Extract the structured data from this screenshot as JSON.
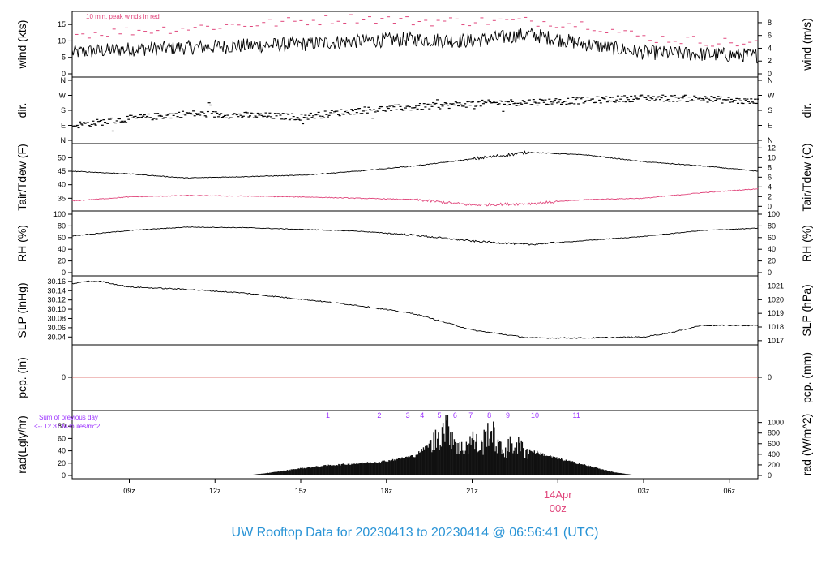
{
  "footer": {
    "title": "UW Rooftop Data for 20230413  to  20230414 @ 06:56:41  (UTC)"
  },
  "annotations": {
    "peak_note": "10 min. peak winds in red",
    "sum_label": "Sum of previous day",
    "sum_value": "<-- 12.37 MJoules/m^2",
    "date_label": "14Apr",
    "date_sub": "00z"
  },
  "colors": {
    "line": "#000000",
    "peak": "#e0457b",
    "dew": "#e0457b",
    "precip": "#d9534f",
    "title": "#2a94d6",
    "radlabel": "#9b30ff",
    "date": "#e0457b"
  },
  "chart_data": [
    {
      "type": "line",
      "panel": "wind",
      "ylabel": "wind (kts)",
      "ylabel_right": "wind (m/s)",
      "ylim": [
        0,
        18
      ],
      "yticks": [
        "0",
        "5",
        "10",
        "15"
      ],
      "yticks_right": [
        "0",
        "2",
        "4",
        "6",
        "8"
      ],
      "x_hours": [
        0,
        2,
        4,
        6,
        8,
        10,
        12,
        14,
        16,
        18,
        20,
        22,
        24
      ],
      "series": [
        {
          "values": [
            6.5,
            7.5,
            8,
            8.5,
            9,
            10,
            10.5,
            10,
            12,
            9,
            6.5,
            6,
            5.5
          ]
        },
        {
          "name": "peak",
          "values": [
            12,
            13,
            14,
            15,
            16,
            17,
            16,
            16,
            16,
            15,
            11,
            10,
            9
          ]
        }
      ]
    },
    {
      "type": "scatter",
      "panel": "dir",
      "ylabel": "dir.",
      "ylabel_right": "dir.",
      "yticks": [
        "N",
        "E",
        "S",
        "W",
        "N"
      ],
      "x_hours": [
        0,
        2,
        4,
        6,
        8,
        10,
        12,
        14,
        16,
        18,
        20,
        22,
        24
      ],
      "values": [
        90,
        130,
        160,
        150,
        140,
        180,
        200,
        220,
        230,
        240,
        255,
        250,
        230
      ]
    },
    {
      "type": "line",
      "panel": "temp",
      "ylabel": "Tair/Tdew (F)",
      "ylabel_right": "Tair/Tdew (C)",
      "ylim": [
        31.5,
        54
      ],
      "yticks": [
        "35",
        "40",
        "45",
        "50"
      ],
      "yticks_right": [
        "0",
        "2",
        "4",
        "6",
        "8",
        "10",
        "12"
      ],
      "x_hours": [
        0,
        2,
        4,
        6,
        8,
        10,
        12,
        14,
        16,
        18,
        20,
        22,
        24
      ],
      "series": [
        {
          "name": "Tair",
          "values": [
            45,
            44,
            42.5,
            43,
            43.5,
            45,
            47,
            49.5,
            52,
            51,
            48.5,
            47,
            45
          ]
        },
        {
          "name": "Tdew",
          "values": [
            34,
            35.5,
            36,
            35.8,
            35.5,
            35,
            34.5,
            32.5,
            33,
            34.5,
            35,
            37,
            38.5
          ]
        }
      ]
    },
    {
      "type": "line",
      "panel": "rh",
      "ylabel": "RH (%)",
      "ylabel_right": "RH (%)",
      "ylim": [
        0,
        100
      ],
      "yticks": [
        "0",
        "20",
        "40",
        "60",
        "80",
        "100"
      ],
      "x_hours": [
        0,
        2,
        4,
        6,
        8,
        10,
        12,
        14,
        16,
        18,
        20,
        22,
        24
      ],
      "values": [
        63,
        72,
        78,
        77,
        74,
        71,
        64,
        54,
        48,
        55,
        62,
        72,
        76
      ]
    },
    {
      "type": "line",
      "panel": "slp",
      "ylabel": "SLP (inHg)",
      "ylabel_right": "SLP (hPa)",
      "ylim": [
        30.03,
        30.165
      ],
      "yticks": [
        "30.04",
        "30.06",
        "30.08",
        "30.10",
        "30.12",
        "30.14",
        "30.16"
      ],
      "yticks_right": [
        "1017",
        "1018",
        "1019",
        "1020",
        "1021"
      ],
      "x_hours": [
        0,
        0.5,
        1,
        2,
        4,
        6,
        7,
        8,
        10,
        12,
        14,
        16,
        18,
        20,
        21,
        22,
        24
      ],
      "values": [
        30.155,
        30.16,
        30.16,
        30.148,
        30.143,
        30.135,
        30.128,
        30.122,
        30.108,
        30.09,
        30.055,
        30.038,
        30.038,
        30.04,
        30.05,
        30.065,
        30.065
      ]
    },
    {
      "type": "line",
      "panel": "pcp",
      "ylabel": "pcp. (in)",
      "ylabel_right": "pcp. (mm)",
      "yticks": [
        "0"
      ],
      "yticks_right": [
        "0"
      ],
      "x_hours": [
        0,
        24
      ],
      "values": [
        0,
        0
      ]
    },
    {
      "type": "area",
      "panel": "rad",
      "ylabel": "rad(Lgly/hr)",
      "ylabel_right": "rad (W/m^2)",
      "ylim": [
        0,
        100
      ],
      "yticks": [
        "0",
        "20",
        "40",
        "60",
        "80"
      ],
      "yticks_right": [
        "0",
        "200",
        "400",
        "600",
        "800",
        "1000"
      ],
      "x_hours": [
        6.1,
        7,
        8,
        9,
        10,
        11,
        12,
        12.6,
        13.1,
        13.6,
        14,
        14.3,
        14.6,
        15,
        15.5,
        16,
        17,
        17.9,
        19,
        19.8
      ],
      "values": [
        0,
        5,
        12,
        17,
        20,
        24,
        33,
        55,
        92,
        45,
        65,
        48,
        85,
        45,
        55,
        42,
        28,
        18,
        5,
        0
      ],
      "hour_labels": [
        "1",
        "2",
        "3",
        "4",
        "5",
        "6",
        "7",
        "8",
        "9",
        "10",
        "11"
      ],
      "hour_x": [
        8.95,
        10.75,
        11.75,
        12.25,
        12.85,
        13.4,
        13.95,
        14.6,
        15.25,
        16.2,
        17.65
      ]
    }
  ],
  "x_axis": {
    "ticks": [
      {
        "h": 2,
        "label": "09z"
      },
      {
        "h": 5,
        "label": "12z"
      },
      {
        "h": 8,
        "label": "15z"
      },
      {
        "h": 11,
        "label": "18z"
      },
      {
        "h": 14,
        "label": "21z"
      },
      {
        "h": 20,
        "label": "03z"
      },
      {
        "h": 23,
        "label": "06z"
      }
    ],
    "date_hour": 17
  }
}
